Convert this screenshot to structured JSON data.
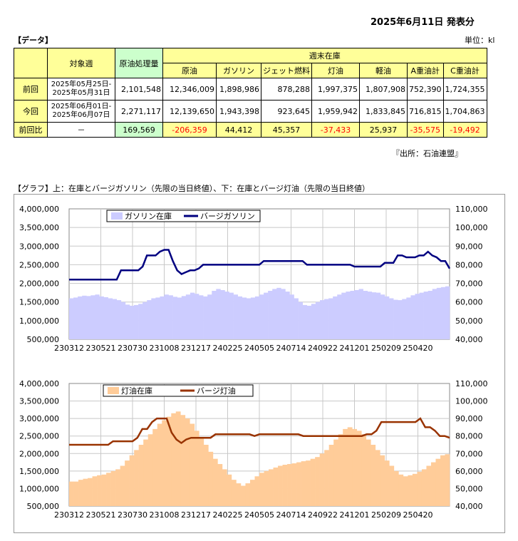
{
  "header": {
    "date_title": "2025年6月11日 発表分"
  },
  "table_section": {
    "label": "【データ】",
    "unit": "単位：kl",
    "source": "『出所：石油連盟』",
    "col_week": "対象週",
    "col_crude_processing": "原油処理量",
    "group_header": "週末在庫",
    "stock_cols": [
      "原油",
      "ガソリン",
      "ジェット燃料",
      "灯油",
      "軽油",
      "A重油計",
      "C重油計"
    ],
    "rows": [
      {
        "label": "前回",
        "week_line1": "2025年05月25日-",
        "week_line2": "2025年05月31日",
        "processing": "2,101,548",
        "stocks": [
          "12,346,009",
          "1,898,986",
          "878,288",
          "1,997,375",
          "1,807,908",
          "752,390",
          "1,724,355"
        ]
      },
      {
        "label": "今回",
        "week_line1": "2025年06月01日-",
        "week_line2": "2025年06月07日",
        "processing": "2,271,117",
        "stocks": [
          "12,139,650",
          "1,943,398",
          "923,645",
          "1,959,942",
          "1,833,845",
          "716,815",
          "1,704,863"
        ]
      },
      {
        "label": "前回比",
        "week": "－",
        "processing": "169,569",
        "stocks": [
          "-206,359",
          "44,412",
          "45,357",
          "-37,433",
          "25,937",
          "-35,575",
          "-19,492"
        ]
      }
    ]
  },
  "graph_section": {
    "label": "【グラフ】上：在庫とバージガソリン（先限の当日終値）、下：在庫とバージ灯油（先限の当日終値）"
  },
  "colors": {
    "gasoline_bar": "#ccccff",
    "gasoline_line": "#000080",
    "kerosene_bar": "#ffcc99",
    "kerosene_line": "#993300",
    "negative": "#ff0000",
    "yellow_cell": "#ffff99",
    "green_cell": "#ccffcc"
  },
  "chart_data": [
    {
      "type": "bar",
      "x_tick_labels": [
        "230312",
        "230521",
        "230730",
        "231008",
        "231217",
        "240225",
        "240505",
        "240714",
        "240922",
        "241201",
        "250209",
        "250420"
      ],
      "yleft_ticks": [
        "500,000",
        "1,000,000",
        "1,500,000",
        "2,000,000",
        "2,500,000",
        "3,000,000",
        "3,500,000",
        "4,000,000"
      ],
      "yright_ticks": [
        "40,000",
        "50,000",
        "60,000",
        "70,000",
        "80,000",
        "90,000",
        "100,000",
        "110,000"
      ],
      "ylim_left": [
        500000,
        4000000
      ],
      "ylim_right": [
        40000,
        110000
      ],
      "grid": true,
      "legend": "top",
      "series": [
        {
          "name": "ガソリン在庫",
          "kind": "bar",
          "axis": "left",
          "values": [
            1600000,
            1620000,
            1650000,
            1670000,
            1660000,
            1680000,
            1700000,
            1650000,
            1630000,
            1600000,
            1580000,
            1550000,
            1500000,
            1430000,
            1400000,
            1420000,
            1450000,
            1500000,
            1550000,
            1600000,
            1620000,
            1650000,
            1700000,
            1680000,
            1640000,
            1620000,
            1660000,
            1700000,
            1750000,
            1720000,
            1680000,
            1650000,
            1700000,
            1800000,
            1850000,
            1820000,
            1780000,
            1750000,
            1700000,
            1650000,
            1620000,
            1600000,
            1620000,
            1650000,
            1700000,
            1750000,
            1800000,
            1850000,
            1880000,
            1850000,
            1780000,
            1700000,
            1600000,
            1500000,
            1420000,
            1400000,
            1450000,
            1500000,
            1550000,
            1580000,
            1600000,
            1650000,
            1700000,
            1750000,
            1780000,
            1800000,
            1820000,
            1850000,
            1800000,
            1780000,
            1760000,
            1750000,
            1700000,
            1650000,
            1600000,
            1560000,
            1550000,
            1580000,
            1620000,
            1680000,
            1720000,
            1750000,
            1780000,
            1800000,
            1850000,
            1880000,
            1900000,
            1920000
          ]
        },
        {
          "name": "バージガソリン",
          "kind": "line",
          "axis": "right",
          "values": [
            72000,
            72000,
            72000,
            72000,
            72000,
            72000,
            72000,
            72000,
            72000,
            72000,
            72000,
            72000,
            77000,
            77000,
            77000,
            77000,
            77000,
            79000,
            85000,
            85000,
            85000,
            87000,
            88000,
            88000,
            82000,
            77000,
            75000,
            76000,
            77000,
            77000,
            78000,
            80000,
            80000,
            80000,
            80000,
            80000,
            80000,
            80000,
            80000,
            80000,
            80000,
            80000,
            80000,
            80000,
            80000,
            82000,
            82000,
            82000,
            82000,
            82000,
            82000,
            82000,
            82000,
            82000,
            82000,
            80000,
            80000,
            80000,
            80000,
            80000,
            80000,
            80000,
            80000,
            80000,
            80000,
            80000,
            79000,
            79000,
            79000,
            79000,
            79000,
            79000,
            79000,
            81000,
            81000,
            81000,
            85000,
            85000,
            84000,
            84000,
            84000,
            85000,
            85000,
            87000,
            85000,
            84000,
            82000,
            82000,
            78000
          ]
        }
      ]
    },
    {
      "type": "bar",
      "x_tick_labels": [
        "230312",
        "230521",
        "230730",
        "231008",
        "231217",
        "240225",
        "240505",
        "240714",
        "240922",
        "241201",
        "250209",
        "250420"
      ],
      "yleft_ticks": [
        "500,000",
        "1,000,000",
        "1,500,000",
        "2,000,000",
        "2,500,000",
        "3,000,000",
        "3,500,000",
        "4,000,000"
      ],
      "yright_ticks": [
        "40,000",
        "50,000",
        "60,000",
        "70,000",
        "80,000",
        "90,000",
        "100,000",
        "110,000"
      ],
      "ylim_left": [
        500000,
        4000000
      ],
      "ylim_right": [
        40000,
        110000
      ],
      "grid": true,
      "legend": "top",
      "series": [
        {
          "name": "灯油在庫",
          "kind": "bar",
          "axis": "left",
          "values": [
            1200000,
            1200000,
            1250000,
            1280000,
            1300000,
            1350000,
            1380000,
            1400000,
            1450000,
            1500000,
            1550000,
            1650000,
            1800000,
            1950000,
            2100000,
            2250000,
            2400000,
            2550000,
            2700000,
            2850000,
            2950000,
            3050000,
            3150000,
            3200000,
            3100000,
            3000000,
            2850000,
            2650000,
            2450000,
            2250000,
            2050000,
            1850000,
            1700000,
            1550000,
            1400000,
            1250000,
            1150000,
            1080000,
            1150000,
            1250000,
            1350000,
            1450000,
            1500000,
            1550000,
            1600000,
            1650000,
            1680000,
            1700000,
            1720000,
            1750000,
            1780000,
            1800000,
            1850000,
            1900000,
            2000000,
            2100000,
            2250000,
            2400000,
            2550000,
            2700000,
            2750000,
            2700000,
            2650000,
            2550000,
            2400000,
            2250000,
            2100000,
            1950000,
            1800000,
            1650000,
            1500000,
            1400000,
            1350000,
            1380000,
            1420000,
            1480000,
            1550000,
            1650000,
            1750000,
            1850000,
            1950000,
            1980000
          ]
        },
        {
          "name": "バージ灯油",
          "kind": "line",
          "axis": "right",
          "values": [
            75000,
            75000,
            75000,
            75000,
            75000,
            75000,
            75000,
            75000,
            75000,
            77000,
            77000,
            77000,
            77000,
            77000,
            79000,
            84000,
            84000,
            88000,
            90000,
            90000,
            90000,
            82000,
            78000,
            76000,
            78000,
            79000,
            79000,
            79000,
            79000,
            79000,
            81000,
            81000,
            81000,
            81000,
            81000,
            81000,
            81000,
            81000,
            80000,
            81000,
            81000,
            81000,
            81000,
            81000,
            81000,
            81000,
            81000,
            81000,
            80000,
            80000,
            80000,
            80000,
            80000,
            80000,
            80000,
            80000,
            80000,
            80000,
            80000,
            80000,
            80000,
            81000,
            81000,
            83000,
            88000,
            88000,
            88000,
            88000,
            88000,
            88000,
            88000,
            88000,
            90000,
            85000,
            85000,
            83000,
            80000,
            80000,
            79000
          ]
        }
      ]
    }
  ]
}
